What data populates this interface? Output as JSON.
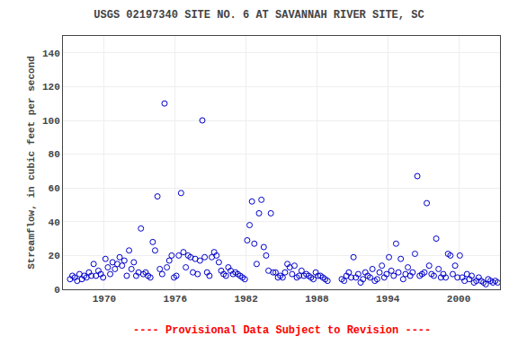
{
  "chart_data": {
    "type": "scatter",
    "title": "USGS 02197340 SITE NO. 6 AT SAVANNAH RIVER SITE, SC",
    "ylabel": "Streamflow, in cubic feet per second",
    "x": [
      1967.1,
      1967.3,
      1967.5,
      1967.7,
      1967.9,
      1968.1,
      1968.3,
      1968.5,
      1968.7,
      1968.9,
      1969.1,
      1969.3,
      1969.5,
      1969.7,
      1969.9,
      1970.1,
      1970.3,
      1970.5,
      1970.7,
      1970.9,
      1971.1,
      1971.3,
      1971.5,
      1971.7,
      1971.9,
      1972.1,
      1972.3,
      1972.5,
      1972.7,
      1972.9,
      1973.1,
      1973.3,
      1973.5,
      1973.7,
      1973.9,
      1974.1,
      1974.3,
      1974.5,
      1974.7,
      1974.9,
      1975.1,
      1975.3,
      1975.5,
      1975.7,
      1975.9,
      1976.1,
      1976.3,
      1976.5,
      1976.7,
      1976.9,
      1977.1,
      1977.3,
      1977.5,
      1977.7,
      1977.9,
      1978.1,
      1978.3,
      1978.5,
      1978.7,
      1978.9,
      1979.1,
      1979.3,
      1979.5,
      1979.7,
      1979.9,
      1980.1,
      1980.3,
      1980.5,
      1980.7,
      1980.9,
      1981.1,
      1981.3,
      1981.5,
      1981.7,
      1981.9,
      1982.1,
      1982.3,
      1982.5,
      1982.7,
      1982.9,
      1983.1,
      1983.3,
      1983.5,
      1983.7,
      1983.9,
      1984.1,
      1984.3,
      1984.5,
      1984.7,
      1984.9,
      1985.1,
      1985.3,
      1985.5,
      1985.7,
      1985.9,
      1986.1,
      1986.3,
      1986.5,
      1986.7,
      1986.9,
      1987.1,
      1987.3,
      1987.5,
      1987.7,
      1987.9,
      1988.1,
      1988.3,
      1988.5,
      1988.7,
      1988.9,
      1990.1,
      1990.3,
      1990.5,
      1990.7,
      1990.9,
      1991.1,
      1991.3,
      1991.5,
      1991.7,
      1991.9,
      1992.1,
      1992.3,
      1992.5,
      1992.7,
      1992.9,
      1993.1,
      1993.3,
      1993.5,
      1993.7,
      1993.9,
      1994.1,
      1994.3,
      1994.5,
      1994.7,
      1994.9,
      1995.1,
      1995.3,
      1995.5,
      1995.7,
      1995.9,
      1996.1,
      1996.3,
      1996.5,
      1996.7,
      1996.9,
      1997.1,
      1997.3,
      1997.5,
      1997.7,
      1997.9,
      1998.1,
      1998.3,
      1998.5,
      1998.7,
      1998.9,
      1999.1,
      1999.3,
      1999.5,
      1999.7,
      1999.9,
      2000.1,
      2000.3,
      2000.5,
      2000.7,
      2000.9,
      2001.1,
      2001.3,
      2001.5,
      2001.7,
      2001.9,
      2002.1,
      2002.3,
      2002.5,
      2002.7,
      2002.9,
      2003.1,
      2003.3
    ],
    "values": [
      6,
      8,
      7,
      5,
      9,
      6,
      8,
      7,
      10,
      8,
      15,
      8,
      11,
      9,
      7,
      18,
      13,
      9,
      16,
      12,
      15,
      19,
      14,
      17,
      8,
      23,
      12,
      16,
      8,
      10,
      36,
      9,
      10,
      8,
      7,
      28,
      23,
      55,
      12,
      9,
      110,
      13,
      17,
      20,
      7,
      8,
      20,
      57,
      22,
      13,
      20,
      19,
      10,
      18,
      9,
      17,
      100,
      19,
      10,
      8,
      19,
      22,
      20,
      16,
      11,
      9,
      8,
      13,
      11,
      9,
      10,
      9,
      8,
      7,
      6,
      29,
      38,
      52,
      27,
      15,
      45,
      53,
      25,
      20,
      11,
      45,
      10,
      10,
      7,
      8,
      7,
      10,
      15,
      13,
      9,
      14,
      7,
      8,
      11,
      8,
      9,
      8,
      7,
      6,
      10,
      8,
      8,
      7,
      6,
      5,
      6,
      5,
      8,
      10,
      7,
      19,
      7,
      9,
      4,
      6,
      10,
      8,
      7,
      12,
      5,
      6,
      10,
      14,
      7,
      9,
      19,
      11,
      8,
      27,
      10,
      18,
      6,
      9,
      13,
      8,
      10,
      21,
      67,
      8,
      9,
      10,
      51,
      14,
      9,
      8,
      30,
      12,
      7,
      9,
      7,
      21,
      20,
      9,
      14,
      7,
      20,
      7,
      5,
      9,
      6,
      8,
      4,
      5,
      7,
      5,
      4,
      3,
      6,
      5,
      4,
      5,
      4
    ],
    "color": "#0000CC",
    "marker": "circle-open",
    "xlim": [
      1966.5,
      2003.5
    ],
    "ylim": [
      0,
      150
    ],
    "xticks": [
      1970,
      1976,
      1982,
      1988,
      1994,
      2000
    ],
    "yticks": [
      0,
      20,
      40,
      60,
      80,
      100,
      120,
      140
    ],
    "grid": true,
    "annotations": [
      {
        "text": "---- Provisional Data Subject to Revision ----",
        "color": "#ff0000"
      }
    ]
  }
}
